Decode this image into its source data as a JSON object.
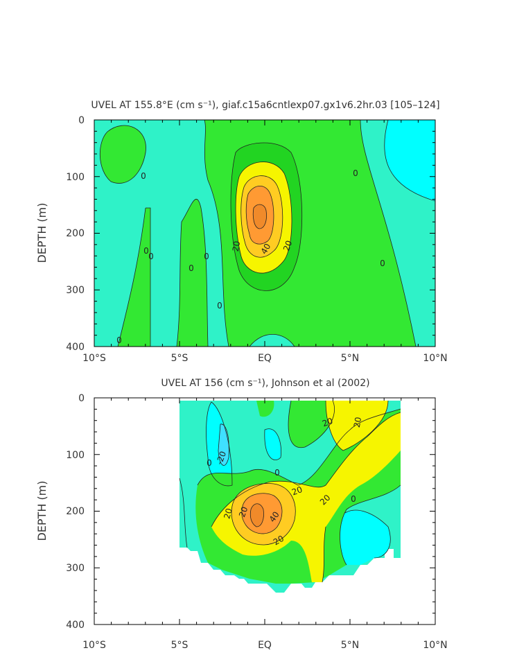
{
  "colors": {
    "c_lt_m20": "#3fe0ff",
    "c_m20_0": "#00ffff",
    "c_0_10": "#2ff2c8",
    "c_10_20": "#33e833",
    "c_20_30": "#22d422",
    "c_30_40": "#f6f500",
    "c_40_50": "#ffcc22",
    "c_50_60": "#ff9a33",
    "c_gt_60": "#f08a2a"
  },
  "chart_data": [
    {
      "type": "contour",
      "title": "UVEL AT 155.8°E (cm s⁻¹), giaf.c15a6cntlexp07.gx1v6.2hr.03 [105–124]",
      "ylabel": "DEPTH (m)",
      "xlabel": "",
      "x_ticks": [
        "10°S",
        "5°S",
        "EQ",
        "5°N",
        "10°N"
      ],
      "x_range": [
        -10,
        10
      ],
      "y_ticks": [
        "0",
        "100",
        "200",
        "300",
        "400"
      ],
      "y_range": [
        0,
        400
      ],
      "contour_interval": 10,
      "contour_labels": [
        "0",
        "0",
        "0",
        "0",
        "0",
        "0",
        "0",
        "0",
        "0",
        "20",
        "40",
        "20"
      ],
      "features": [
        {
          "name": "equatorial undercurrent core",
          "lat": -0.1,
          "depth": 175,
          "max": 60
        },
        {
          "name": "weak eastward patch 9S",
          "lat": -8.5,
          "depth": 40,
          "max": 10
        },
        {
          "name": "westward region north",
          "lat": 8.5,
          "depth": 60,
          "min": -20
        }
      ]
    },
    {
      "type": "contour",
      "title": "UVEL AT 156 (cm s⁻¹), Johnson et al (2002)",
      "ylabel": "DEPTH (m)",
      "xlabel": "",
      "x_ticks": [
        "10°S",
        "5°S",
        "EQ",
        "5°N",
        "10°N"
      ],
      "x_range": [
        -10,
        10
      ],
      "y_ticks": [
        "0",
        "100",
        "200",
        "300",
        "400"
      ],
      "y_range": [
        0,
        400
      ],
      "contour_interval": 10,
      "contour_labels": [
        "20",
        "20",
        "0",
        "-20",
        "0",
        "20",
        "20",
        "40",
        "20",
        "0",
        "20",
        "20"
      ],
      "features": [
        {
          "name": "equatorial undercurrent core",
          "lat": -0.3,
          "depth": 200,
          "max": 50
        },
        {
          "name": "westward flow at surface",
          "lat": -1.5,
          "depth": 80,
          "min": -20
        },
        {
          "name": "eastward surface jet north",
          "lat": 5,
          "depth": 30,
          "max": 30
        }
      ]
    }
  ]
}
